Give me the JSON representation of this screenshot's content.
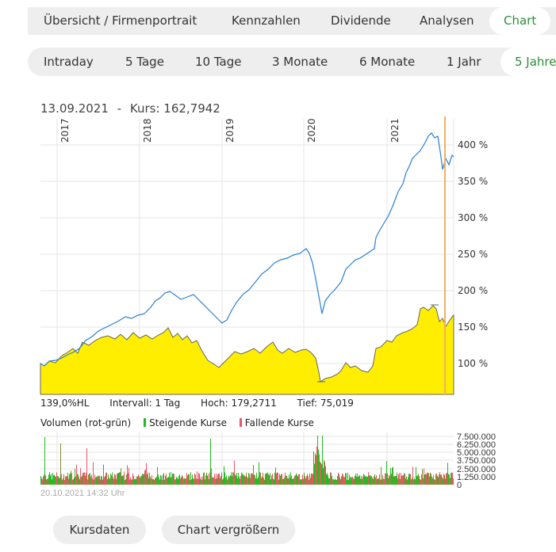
{
  "nav": {
    "tabs": [
      {
        "label": "Übersicht / Firmenportrait",
        "active": false
      },
      {
        "label": "Kennzahlen",
        "active": false
      },
      {
        "label": "Dividende",
        "active": false
      },
      {
        "label": "Analysen",
        "active": false
      },
      {
        "label": "Chart",
        "active": true
      }
    ]
  },
  "ranges": {
    "tabs": [
      {
        "label": "Intraday",
        "active": false
      },
      {
        "label": "5 Tage",
        "active": false
      },
      {
        "label": "10 Tage",
        "active": false
      },
      {
        "label": "3 Monate",
        "active": false
      },
      {
        "label": "6 Monate",
        "active": false
      },
      {
        "label": "1 Jahr",
        "active": false
      },
      {
        "label": "5 Jahre",
        "active": true
      }
    ]
  },
  "headline": {
    "date": "13.09.2021",
    "separator": "-",
    "price_label": "Kurs: 162,7942"
  },
  "stats": {
    "hl": "139,0%HL",
    "interval": "Intervall: 1 Tag",
    "high": "Hoch: 179,2711",
    "low": "Tief:  75,019"
  },
  "volume_legend": {
    "title": "Volumen (rot-grün)",
    "rising": "Steigende Kurse",
    "falling": "Fallende Kurse",
    "rising_color": "#22bb22",
    "falling_color": "#ee5566"
  },
  "timestamp": "20.10.2021 14:32 Uhr",
  "buttons": {
    "price_data": "Kursdaten",
    "enlarge": "Chart vergrößern"
  },
  "colors": {
    "accent": "#2e8b3a",
    "benchmark_line": "#2a7fd4",
    "stock_fill": "#ffee00",
    "stock_line": "#666666",
    "cursor": "#f5b060",
    "grid": "#e6e6e6"
  },
  "chart_data": [
    {
      "type": "line",
      "title": "13.09.2021 - Kurs: 162,7942",
      "xlabel": "",
      "ylabel": "",
      "x_ticks": [
        "2017",
        "2018",
        "2019",
        "2020",
        "2021"
      ],
      "y_ticks": [
        "100 %",
        "150 %",
        "200 %",
        "250 %",
        "300 %",
        "350 %",
        "400 %"
      ],
      "ylim": [
        65,
        425
      ],
      "grid": true,
      "series": [
        {
          "name": "Benchmark (blue line)",
          "style": "line",
          "x": [
            "2016-10",
            "2017-01",
            "2017-04",
            "2017-07",
            "2017-10",
            "2018-01",
            "2018-03",
            "2018-06",
            "2018-09",
            "2018-12",
            "2019-03",
            "2019-06",
            "2019-09",
            "2019-12",
            "2020-02",
            "2020-03",
            "2020-06",
            "2020-09",
            "2020-12",
            "2021-03",
            "2021-06",
            "2021-08",
            "2021-09",
            "2021-10"
          ],
          "values": [
            100,
            103,
            118,
            125,
            140,
            158,
            160,
            200,
            198,
            178,
            210,
            225,
            240,
            255,
            260,
            168,
            210,
            240,
            255,
            290,
            380,
            420,
            365,
            390
          ]
        },
        {
          "name": "Aktie (yellow area)",
          "style": "area",
          "x": [
            "2016-10",
            "2017-01",
            "2017-04",
            "2017-07",
            "2017-10",
            "2018-01",
            "2018-03",
            "2018-06",
            "2018-09",
            "2018-12",
            "2019-03",
            "2019-06",
            "2019-09",
            "2019-12",
            "2020-02",
            "2020-03",
            "2020-06",
            "2020-09",
            "2020-12",
            "2021-03",
            "2021-06",
            "2021-08",
            "2021-09",
            "2021-10"
          ],
          "values": [
            100,
            102,
            122,
            133,
            135,
            137,
            132,
            145,
            130,
            125,
            100,
            112,
            118,
            122,
            115,
            76,
            83,
            90,
            93,
            130,
            140,
            178,
            150,
            162
          ]
        }
      ],
      "annotations": [
        {
          "type": "cursor",
          "date": "13.09.2021",
          "value": "162,7942"
        },
        {
          "type": "high",
          "value": "179,2711"
        },
        {
          "type": "low",
          "value": "75,019"
        }
      ]
    },
    {
      "type": "bar",
      "title": "Volumen (rot-grün)",
      "y_ticks": [
        "0",
        "1.250.000",
        "2.500.000",
        "3.750.000",
        "5.000.000",
        "6.250.000",
        "7.500.000"
      ],
      "ylim": [
        0,
        7500000
      ],
      "legend": [
        "Steigende Kurse",
        "Fallende Kurse"
      ],
      "description": "Daily volume bars, mostly 1.000.000-2.000.000, spikes above 7.500.000 around March 2020"
    }
  ]
}
